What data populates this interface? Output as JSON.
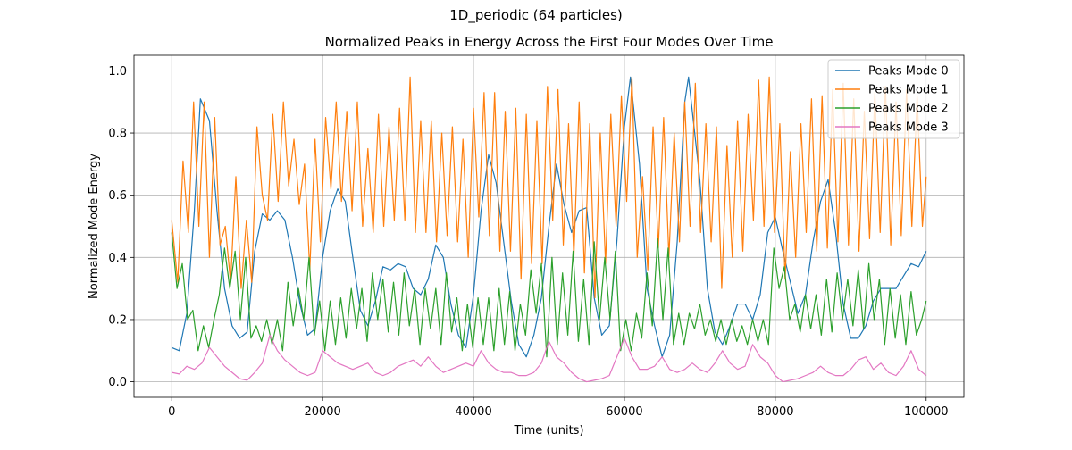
{
  "figure": {
    "suptitle": "1D_periodic (64 particles)"
  },
  "chart_data": {
    "type": "line",
    "title": "Normalized Peaks in Energy Across the First Four Modes Over Time",
    "xlabel": "Time (units)",
    "ylabel": "Normalized Mode Energy",
    "xlim": [
      -5000,
      105000
    ],
    "ylim": [
      -0.05,
      1.05
    ],
    "xticks": [
      0,
      20000,
      40000,
      60000,
      80000,
      100000
    ],
    "yticks": [
      0.0,
      0.2,
      0.4,
      0.6,
      0.8,
      1.0
    ],
    "xtick_labels": [
      "0",
      "20000",
      "40000",
      "60000",
      "80000",
      "100000"
    ],
    "ytick_labels": [
      "0.0",
      "0.2",
      "0.4",
      "0.6",
      "0.8",
      "1.0"
    ],
    "grid": true,
    "legend_position": "upper right",
    "series": [
      {
        "name": "Peaks Mode 0",
        "color": "#1f77b4",
        "x": [
          0,
          1000,
          2000,
          3000,
          3800,
          5000,
          6000,
          7000,
          8000,
          9000,
          10000,
          11000,
          12000,
          13000,
          14000,
          15000,
          16000,
          17000,
          18000,
          19000,
          20000,
          21000,
          22000,
          23000,
          24000,
          25000,
          26000,
          27000,
          28000,
          29000,
          30000,
          31000,
          32000,
          33000,
          34000,
          35000,
          36000,
          37000,
          38000,
          39000,
          40000,
          41000,
          42000,
          43000,
          44000,
          45000,
          46000,
          47000,
          48000,
          49000,
          50000,
          51000,
          52000,
          53000,
          54000,
          55000,
          56000,
          57000,
          58000,
          59000,
          60000,
          60800,
          62000,
          63000,
          64000,
          65000,
          66000,
          67000,
          68000,
          68500,
          70000,
          71000,
          72000,
          73000,
          74000,
          75000,
          76000,
          77000,
          78000,
          79000,
          80000,
          81000,
          82000,
          83000,
          84000,
          85000,
          86000,
          87000,
          88000,
          89000,
          90000,
          91000,
          92000,
          93000,
          94000,
          95000,
          96000,
          97000,
          98000,
          99000,
          100000
        ],
        "values": [
          0.11,
          0.1,
          0.22,
          0.55,
          0.91,
          0.84,
          0.55,
          0.3,
          0.18,
          0.14,
          0.16,
          0.42,
          0.54,
          0.52,
          0.55,
          0.52,
          0.4,
          0.25,
          0.15,
          0.17,
          0.4,
          0.55,
          0.62,
          0.58,
          0.4,
          0.23,
          0.18,
          0.26,
          0.37,
          0.36,
          0.38,
          0.37,
          0.3,
          0.28,
          0.33,
          0.44,
          0.4,
          0.25,
          0.15,
          0.11,
          0.28,
          0.55,
          0.73,
          0.64,
          0.45,
          0.26,
          0.12,
          0.08,
          0.15,
          0.27,
          0.5,
          0.7,
          0.57,
          0.48,
          0.55,
          0.56,
          0.27,
          0.15,
          0.18,
          0.45,
          0.82,
          0.98,
          0.7,
          0.3,
          0.18,
          0.08,
          0.15,
          0.45,
          0.9,
          0.98,
          0.65,
          0.3,
          0.16,
          0.12,
          0.18,
          0.25,
          0.25,
          0.2,
          0.28,
          0.48,
          0.53,
          0.42,
          0.32,
          0.22,
          0.28,
          0.45,
          0.58,
          0.65,
          0.48,
          0.25,
          0.14,
          0.14,
          0.18,
          0.26,
          0.3,
          0.3,
          0.3,
          0.34,
          0.38,
          0.37,
          0.42
        ]
      },
      {
        "name": "Peaks Mode 1",
        "color": "#ff7f0e",
        "x": [
          0,
          800,
          1500,
          2200,
          2900,
          3600,
          4300,
          5000,
          5700,
          6400,
          7100,
          7800,
          8500,
          9200,
          9900,
          10600,
          11300,
          12000,
          12700,
          13400,
          14100,
          14800,
          15500,
          16200,
          16900,
          17600,
          18300,
          19000,
          19700,
          20400,
          21100,
          21800,
          22500,
          23200,
          23900,
          24600,
          25300,
          26000,
          26700,
          27400,
          28100,
          28800,
          29500,
          30200,
          30900,
          31600,
          32300,
          33000,
          33700,
          34400,
          35100,
          35800,
          36500,
          37200,
          37900,
          38600,
          39300,
          40000,
          40700,
          41400,
          42100,
          42800,
          43500,
          44200,
          44900,
          45600,
          46300,
          47000,
          47700,
          48400,
          49100,
          49800,
          50500,
          51200,
          51900,
          52600,
          53300,
          54000,
          54700,
          55400,
          56100,
          56800,
          57500,
          58200,
          58900,
          59600,
          60300,
          61000,
          61700,
          62400,
          63100,
          63800,
          64500,
          65200,
          65900,
          66600,
          67300,
          68000,
          68700,
          69400,
          70100,
          70800,
          71500,
          72200,
          72900,
          73600,
          74300,
          75000,
          75700,
          76400,
          77100,
          77800,
          78500,
          79200,
          79900,
          80600,
          81300,
          82000,
          82700,
          83400,
          84100,
          84800,
          85500,
          86200,
          86900,
          87600,
          88300,
          89000,
          89700,
          90400,
          91100,
          91800,
          92500,
          93200,
          93900,
          94600,
          95300,
          96000,
          96700,
          97400,
          98100,
          98800,
          99500,
          100000
        ],
        "values": [
          0.52,
          0.32,
          0.71,
          0.48,
          0.9,
          0.5,
          0.9,
          0.4,
          0.85,
          0.44,
          0.5,
          0.32,
          0.66,
          0.3,
          0.52,
          0.32,
          0.82,
          0.6,
          0.52,
          0.86,
          0.58,
          0.9,
          0.63,
          0.78,
          0.57,
          0.7,
          0.36,
          0.78,
          0.45,
          0.85,
          0.62,
          0.9,
          0.58,
          0.87,
          0.55,
          0.9,
          0.5,
          0.75,
          0.48,
          0.86,
          0.5,
          0.82,
          0.52,
          0.88,
          0.52,
          0.98,
          0.48,
          0.84,
          0.48,
          0.84,
          0.45,
          0.8,
          0.47,
          0.82,
          0.45,
          0.78,
          0.4,
          0.88,
          0.53,
          0.93,
          0.47,
          0.93,
          0.42,
          0.87,
          0.42,
          0.88,
          0.33,
          0.86,
          0.38,
          0.84,
          0.38,
          0.95,
          0.52,
          0.94,
          0.44,
          0.83,
          0.4,
          0.9,
          0.35,
          0.83,
          0.27,
          0.8,
          0.38,
          0.86,
          0.5,
          0.92,
          0.58,
          0.98,
          0.4,
          0.66,
          0.36,
          0.82,
          0.43,
          0.85,
          0.4,
          0.8,
          0.45,
          0.9,
          0.5,
          0.96,
          0.48,
          0.83,
          0.45,
          0.82,
          0.3,
          0.76,
          0.4,
          0.84,
          0.42,
          0.86,
          0.52,
          0.97,
          0.5,
          0.98,
          0.48,
          0.83,
          0.33,
          0.74,
          0.4,
          0.83,
          0.48,
          0.91,
          0.42,
          0.92,
          0.43,
          0.94,
          0.45,
          0.96,
          0.44,
          0.91,
          0.42,
          0.87,
          0.46,
          0.93,
          0.48,
          0.95,
          0.44,
          0.9,
          0.47,
          0.94,
          0.5,
          0.92,
          0.5,
          0.66
        ]
      },
      {
        "name": "Peaks Mode 2",
        "color": "#2ca02c",
        "x": [
          0,
          700,
          1400,
          2100,
          2800,
          3500,
          4200,
          4900,
          5600,
          6300,
          7000,
          7700,
          8400,
          9100,
          9800,
          10500,
          11200,
          11900,
          12600,
          13300,
          14000,
          14700,
          15400,
          16100,
          16800,
          17500,
          18200,
          18900,
          19600,
          20300,
          21000,
          21700,
          22400,
          23100,
          23800,
          24500,
          25200,
          25900,
          26600,
          27300,
          28000,
          28700,
          29400,
          30100,
          30800,
          31500,
          32200,
          32900,
          33600,
          34300,
          35000,
          35700,
          36400,
          37100,
          37800,
          38500,
          39200,
          39900,
          40600,
          41300,
          42000,
          42700,
          43400,
          44100,
          44800,
          45500,
          46200,
          46900,
          47600,
          48300,
          49000,
          49700,
          50400,
          51100,
          51800,
          52500,
          53200,
          53900,
          54600,
          55300,
          56000,
          56700,
          57400,
          58100,
          58800,
          59500,
          60200,
          60900,
          61600,
          62300,
          63000,
          63700,
          64400,
          65100,
          65800,
          66500,
          67200,
          67900,
          68600,
          69300,
          70000,
          70700,
          71400,
          72100,
          72800,
          73500,
          74200,
          74900,
          75600,
          76300,
          77000,
          77700,
          78400,
          79100,
          79800,
          80500,
          81200,
          81900,
          82600,
          83300,
          84000,
          84700,
          85400,
          86100,
          86800,
          87500,
          88200,
          88900,
          89600,
          90300,
          91000,
          91700,
          92400,
          93100,
          93800,
          94500,
          95200,
          95900,
          96600,
          97300,
          98000,
          98700,
          99400,
          100000
        ],
        "values": [
          0.48,
          0.3,
          0.38,
          0.2,
          0.23,
          0.1,
          0.18,
          0.11,
          0.2,
          0.28,
          0.43,
          0.3,
          0.42,
          0.2,
          0.4,
          0.14,
          0.18,
          0.13,
          0.2,
          0.12,
          0.2,
          0.1,
          0.32,
          0.18,
          0.3,
          0.2,
          0.4,
          0.15,
          0.26,
          0.1,
          0.26,
          0.12,
          0.27,
          0.14,
          0.3,
          0.17,
          0.3,
          0.13,
          0.35,
          0.2,
          0.33,
          0.16,
          0.32,
          0.15,
          0.35,
          0.18,
          0.3,
          0.12,
          0.3,
          0.17,
          0.3,
          0.12,
          0.35,
          0.16,
          0.27,
          0.1,
          0.25,
          0.11,
          0.27,
          0.12,
          0.27,
          0.1,
          0.3,
          0.12,
          0.29,
          0.1,
          0.25,
          0.15,
          0.36,
          0.22,
          0.38,
          0.08,
          0.4,
          0.12,
          0.35,
          0.15,
          0.42,
          0.13,
          0.33,
          0.12,
          0.45,
          0.2,
          0.4,
          0.2,
          0.42,
          0.1,
          0.2,
          0.1,
          0.22,
          0.14,
          0.35,
          0.18,
          0.46,
          0.2,
          0.43,
          0.12,
          0.22,
          0.12,
          0.22,
          0.17,
          0.25,
          0.15,
          0.2,
          0.13,
          0.2,
          0.12,
          0.2,
          0.13,
          0.18,
          0.12,
          0.2,
          0.13,
          0.2,
          0.12,
          0.43,
          0.3,
          0.37,
          0.2,
          0.25,
          0.16,
          0.28,
          0.17,
          0.28,
          0.15,
          0.33,
          0.16,
          0.35,
          0.2,
          0.33,
          0.18,
          0.36,
          0.17,
          0.38,
          0.2,
          0.33,
          0.12,
          0.3,
          0.14,
          0.28,
          0.12,
          0.29,
          0.15,
          0.2,
          0.26
        ]
      },
      {
        "name": "Peaks Mode 3",
        "color": "#e377c2",
        "x": [
          0,
          1000,
          2000,
          3000,
          4000,
          5000,
          6000,
          7000,
          8000,
          9000,
          10000,
          11000,
          12000,
          13000,
          14000,
          15000,
          16000,
          17000,
          18000,
          19000,
          20000,
          21000,
          22000,
          23000,
          24000,
          25000,
          26000,
          27000,
          28000,
          29000,
          30000,
          31000,
          32000,
          33000,
          34000,
          35000,
          36000,
          37000,
          38000,
          39000,
          40000,
          41000,
          42000,
          43000,
          44000,
          45000,
          46000,
          47000,
          48000,
          49000,
          50000,
          51000,
          52000,
          53000,
          54000,
          55000,
          56000,
          57000,
          58000,
          59000,
          60000,
          61000,
          62000,
          63000,
          64000,
          65000,
          66000,
          67000,
          68000,
          69000,
          70000,
          71000,
          72000,
          73000,
          74000,
          75000,
          76000,
          77000,
          78000,
          79000,
          80000,
          81000,
          82000,
          83000,
          84000,
          85000,
          86000,
          87000,
          88000,
          89000,
          90000,
          91000,
          92000,
          93000,
          94000,
          95000,
          96000,
          97000,
          98000,
          99000,
          100000
        ],
        "values": [
          0.03,
          0.025,
          0.05,
          0.04,
          0.06,
          0.11,
          0.08,
          0.05,
          0.03,
          0.01,
          0.005,
          0.03,
          0.06,
          0.15,
          0.1,
          0.07,
          0.05,
          0.03,
          0.02,
          0.03,
          0.1,
          0.08,
          0.06,
          0.05,
          0.04,
          0.05,
          0.06,
          0.03,
          0.02,
          0.03,
          0.05,
          0.06,
          0.07,
          0.05,
          0.08,
          0.05,
          0.03,
          0.04,
          0.05,
          0.06,
          0.05,
          0.1,
          0.06,
          0.04,
          0.03,
          0.03,
          0.02,
          0.02,
          0.03,
          0.06,
          0.13,
          0.08,
          0.06,
          0.03,
          0.01,
          0.0,
          0.005,
          0.01,
          0.02,
          0.08,
          0.14,
          0.08,
          0.04,
          0.04,
          0.05,
          0.08,
          0.04,
          0.03,
          0.04,
          0.06,
          0.04,
          0.03,
          0.06,
          0.1,
          0.06,
          0.04,
          0.05,
          0.12,
          0.08,
          0.06,
          0.02,
          0.0,
          0.005,
          0.01,
          0.02,
          0.03,
          0.05,
          0.03,
          0.02,
          0.02,
          0.04,
          0.07,
          0.08,
          0.04,
          0.06,
          0.03,
          0.02,
          0.05,
          0.1,
          0.04,
          0.02
        ]
      }
    ]
  }
}
